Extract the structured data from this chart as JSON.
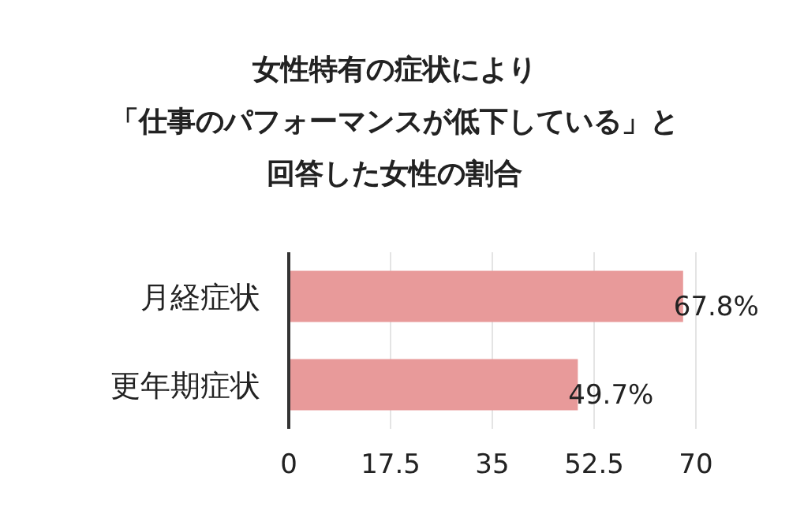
{
  "chart_data": {
    "type": "bar",
    "orientation": "horizontal",
    "title": "女性特有の症状により「仕事のパフォーマンスが低下している」と回答した女性の割合",
    "categories": [
      "月経症状",
      "更年期症状"
    ],
    "values": [
      67.8,
      49.7
    ],
    "value_labels": [
      "67.8%",
      "49.7%"
    ],
    "color": "#e89a9a",
    "xlim": [
      0,
      70
    ],
    "xticks": [
      0,
      17.5,
      35,
      52.5,
      70
    ],
    "grid": "x"
  }
}
